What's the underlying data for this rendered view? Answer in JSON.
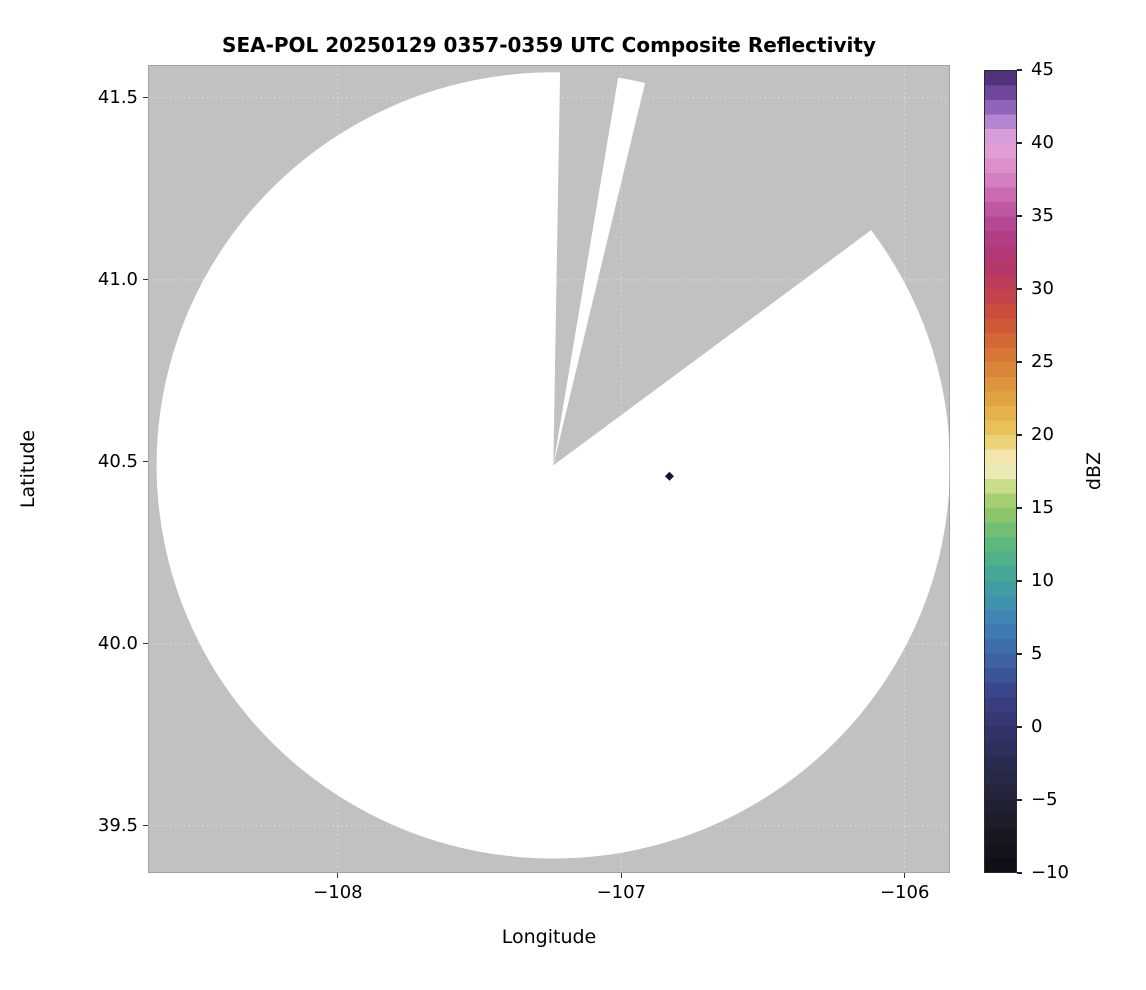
{
  "figure": {
    "title": "SEA-POL 20250129 0357-0359 UTC Composite Reflectivity",
    "xlabel": "Longitude",
    "ylabel": "Latitude",
    "colorbar_label": "dBZ",
    "background_color": "#ffffff",
    "nodata_color": "#c1c1c1",
    "coverage_color": "#ffffff"
  },
  "chart_data": {
    "type": "heatmap",
    "title": "SEA-POL 20250129 0357-0359 UTC Composite Reflectivity",
    "xlabel": "Longitude",
    "ylabel": "Latitude",
    "xlim": [
      -108.67,
      -105.84
    ],
    "ylim": [
      39.37,
      41.59
    ],
    "grid": true,
    "xticks": [
      -108,
      -107,
      -106
    ],
    "xtick_labels": [
      "−108",
      "−107",
      "−106"
    ],
    "yticks": [
      41.5,
      41.0,
      40.5,
      40.0,
      39.5
    ],
    "ytick_labels": [
      "41.5",
      "41.0",
      "40.5",
      "40.0",
      "39.5"
    ],
    "colorbar": {
      "label": "dBZ",
      "min": -10,
      "max": 45,
      "ticks": [
        45,
        40,
        35,
        30,
        25,
        20,
        15,
        10,
        5,
        0,
        -5,
        -10
      ],
      "tick_labels": [
        "45",
        "40",
        "35",
        "30",
        "25",
        "20",
        "15",
        "10",
        "5",
        "0",
        "−5",
        "−10"
      ],
      "levels_step_dbz": 1,
      "cmap_stops": [
        [
          -10,
          "#0c0c14"
        ],
        [
          -8,
          "#16161f"
        ],
        [
          -6,
          "#1e1e2e"
        ],
        [
          -4,
          "#262641"
        ],
        [
          -2,
          "#2d2d58"
        ],
        [
          0,
          "#34346f"
        ],
        [
          2,
          "#3a4186"
        ],
        [
          4,
          "#3d5a9e"
        ],
        [
          6,
          "#3e74b0"
        ],
        [
          8,
          "#3f8db2"
        ],
        [
          10,
          "#43a29c"
        ],
        [
          12,
          "#54b483"
        ],
        [
          14,
          "#7cc16d"
        ],
        [
          16,
          "#b4d472"
        ],
        [
          17,
          "#dde4a0"
        ],
        [
          18,
          "#f4efca"
        ],
        [
          19,
          "#f0dd90"
        ],
        [
          20,
          "#eac95f"
        ],
        [
          22,
          "#e3aa45"
        ],
        [
          24,
          "#dc8c3a"
        ],
        [
          26,
          "#d66e35"
        ],
        [
          28,
          "#cc5138"
        ],
        [
          30,
          "#c03e52"
        ],
        [
          32,
          "#b23570"
        ],
        [
          34,
          "#b03f8c"
        ],
        [
          35,
          "#bb4e9c"
        ],
        [
          37,
          "#d073b9"
        ],
        [
          38,
          "#da88c6"
        ],
        [
          40,
          "#e5a5d8"
        ],
        [
          41,
          "#c895d8"
        ],
        [
          42,
          "#a274c9"
        ],
        [
          43,
          "#7f54ac"
        ],
        [
          44,
          "#5e3a8c"
        ],
        [
          45,
          "#422a6e"
        ]
      ]
    },
    "radar_coverage": {
      "center_lon": -107.24,
      "center_lat": 40.49,
      "radius_lon_deg": 1.4,
      "radius_lat_deg": 1.08,
      "blocked_sectors_azimuth_deg": [
        [
          1,
          9.5
        ],
        [
          13.5,
          53.5
        ]
      ],
      "note": "White disc = radar scan coverage (no significant echo); gray = no data; two gray blocked sectors radiate from the radar center toward the north and northeast"
    },
    "echoes": [
      {
        "lon": -106.83,
        "lat": 40.46,
        "approx_dbz": -6,
        "color": "#15152a",
        "marker": "diamond"
      }
    ]
  }
}
